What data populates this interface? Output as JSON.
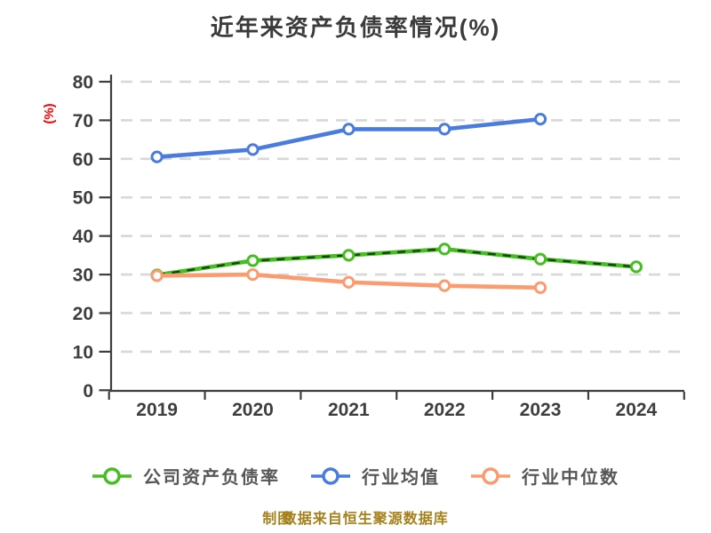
{
  "title": "近年来资产负债率情况(%)",
  "y_axis_unit_label": "(%)",
  "footer": {
    "text_a": "制图",
    "text_b": "数据来自恒生聚源数据库"
  },
  "style": {
    "axis_color": "#3e3e3e",
    "grid_color": "#d8d8d8",
    "tick_label_color": "#3e3e3e",
    "unit_label_color": "#ff0000",
    "title_color": "#3b3b3b",
    "legend_text_color": "#575757",
    "footer_color": "#a6801b",
    "overlay_dash_color": "#173f10",
    "marker_fill": "#ffffff"
  },
  "chart_data": {
    "type": "line",
    "title": "近年来资产负债率情况(%)",
    "x": [
      "2019",
      "2020",
      "2021",
      "2022",
      "2023",
      "2024"
    ],
    "series": [
      {
        "name": "公司资产负债率",
        "color": "#45be21",
        "values": [
          29.9,
          33.6,
          35.0,
          36.6,
          34.0,
          32.0
        ],
        "overlay_dashed": true
      },
      {
        "name": "行业均值",
        "color": "#4a7cdf",
        "values": [
          60.5,
          62.4,
          67.7,
          67.7,
          70.3,
          null
        ],
        "overlay_dashed": false
      },
      {
        "name": "行业中位数",
        "color": "#fa9b70",
        "values": [
          29.7,
          30.0,
          28.0,
          27.1,
          26.6,
          null
        ],
        "overlay_dashed": false
      }
    ],
    "xlabel": "",
    "ylabel": "(%)",
    "ylim": [
      0,
      80
    ],
    "y_ticks": [
      0,
      10,
      20,
      30,
      40,
      50,
      60,
      70,
      80
    ],
    "grid": "horizontal-dashed",
    "legend_position": "bottom",
    "notes": "Green company series carries a thin dark-green dashed overlay tracing the same path; blue and orange series end at 2023."
  }
}
